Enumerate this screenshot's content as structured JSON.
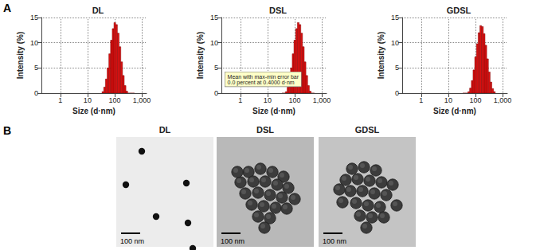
{
  "panel_labels": [
    "A",
    "B"
  ],
  "chart_data": [
    {
      "type": "histogram",
      "title": "DL",
      "x_label": "Size (d·nm)",
      "y_label": "Intensity (%)",
      "bins": [
        34.2,
        39.6,
        45.7,
        52.8,
        61.1,
        70.7,
        81.7,
        94.4,
        109.1,
        126.2,
        145.9,
        168.7,
        195.0,
        225.4,
        260.6,
        301.3,
        348.3,
        402.6,
        465.4,
        538.0
      ],
      "values": [
        0.3,
        1.2,
        2.8,
        5.0,
        7.8,
        10.5,
        12.8,
        14.0,
        13.6,
        11.9,
        9.2,
        6.2,
        3.5,
        1.5,
        0.4,
        0,
        0,
        0,
        0
      ],
      "color": "#e01010",
      "log": "x",
      "grid": true,
      "xlim": [
        0.2,
        1500
      ],
      "xticks": [
        1,
        10,
        100,
        {
          "value": 1000,
          "label": "1,000"
        }
      ],
      "ylim": [
        0,
        15
      ],
      "yticks": [
        0,
        5,
        10,
        15
      ]
    },
    {
      "type": "histogram",
      "title": "DSL",
      "x_label": "Size (d·nm)",
      "y_label": "Intensity (%)",
      "annotation": [
        "Mean with max-min error bar",
        "0.0 percent at 0.4000 d·nm"
      ],
      "bins": [
        34.2,
        39.6,
        45.7,
        52.8,
        61.1,
        70.7,
        81.7,
        94.4,
        109.1,
        126.2,
        145.9,
        168.7,
        195.0,
        225.4,
        260.6,
        301.3,
        348.3,
        402.6,
        465.4,
        538.0
      ],
      "values": [
        0,
        0,
        0.3,
        1.2,
        2.8,
        5.0,
        7.8,
        10.5,
        12.8,
        14.0,
        13.6,
        11.9,
        9.2,
        6.2,
        3.5,
        1.5,
        0.4,
        0,
        0
      ],
      "color": "#e01010",
      "log": "x",
      "grid": true,
      "xlim": [
        0.2,
        1500
      ],
      "xticks": [
        1,
        10,
        100,
        {
          "value": 1000,
          "label": "1,000"
        }
      ],
      "ylim": [
        0,
        15
      ],
      "yticks": [
        0,
        5,
        10,
        15
      ]
    },
    {
      "type": "histogram",
      "title": "GDSL",
      "x_label": "Size (d·nm)",
      "y_label": "Intensity (%)",
      "bins": [
        34.2,
        39.6,
        45.7,
        52.8,
        61.1,
        70.7,
        81.7,
        94.4,
        109.1,
        126.2,
        145.9,
        168.7,
        195.0,
        225.4,
        260.6,
        301.3,
        348.3,
        402.6,
        465.4,
        538.0
      ],
      "values": [
        0,
        0,
        0,
        0.3,
        1.0,
        2.5,
        4.6,
        7.2,
        9.8,
        12.0,
        13.4,
        13.2,
        11.8,
        9.5,
        6.8,
        4.2,
        2.2,
        0.9,
        0.3
      ],
      "color": "#e01010",
      "log": "x",
      "grid": true,
      "xlim": [
        0.2,
        1500
      ],
      "xticks": [
        1,
        10,
        100,
        {
          "value": 1000,
          "label": "1,000"
        }
      ],
      "ylim": [
        0,
        15
      ],
      "yticks": [
        0,
        5,
        10,
        15
      ]
    }
  ],
  "images": [
    {
      "title": "DL",
      "scale_bar": "100 nm"
    },
    {
      "title": "DSL",
      "scale_bar": "100 nm"
    },
    {
      "title": "GDSL",
      "scale_bar": "100 nm"
    }
  ]
}
